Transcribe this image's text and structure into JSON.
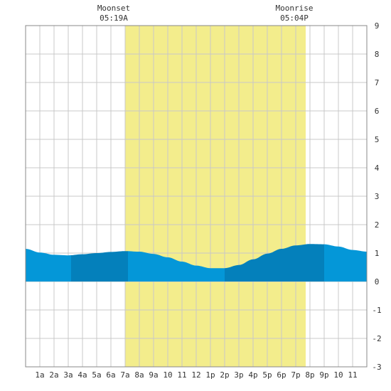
{
  "chart_data": {
    "type": "area",
    "title": "",
    "xlabel": "",
    "ylabel": "",
    "x_tick_labels": [
      "1a",
      "2a",
      "3a",
      "4a",
      "5a",
      "6a",
      "7a",
      "8a",
      "9a",
      "10",
      "11",
      "12",
      "1p",
      "2p",
      "3p",
      "4p",
      "5p",
      "6p",
      "7p",
      "8p",
      "9p",
      "10",
      "11"
    ],
    "xlim": [
      0,
      24
    ],
    "ylim": [
      -3,
      9
    ],
    "y_ticks": [
      -3,
      -2,
      -1,
      0,
      1,
      2,
      3,
      4,
      5,
      6,
      7,
      8,
      9
    ],
    "grid": true,
    "annotations": [
      {
        "label": "Moonset",
        "time": "05:19A",
        "hour": 7.0
      },
      {
        "label": "Moonrise",
        "time": "05:04P",
        "hour": 19.7
      }
    ],
    "daylight_hours": [
      7.0,
      19.7
    ],
    "series": [
      {
        "values": [
          [
            0.0,
            1.15
          ],
          [
            1.0,
            1.02
          ],
          [
            2.0,
            0.94
          ],
          [
            3.0,
            0.92
          ],
          [
            4.0,
            0.96
          ],
          [
            5.0,
            1.0
          ],
          [
            6.0,
            1.04
          ],
          [
            7.0,
            1.07
          ],
          [
            8.0,
            1.05
          ],
          [
            9.0,
            0.97
          ],
          [
            10.0,
            0.85
          ],
          [
            11.0,
            0.7
          ],
          [
            12.0,
            0.56
          ],
          [
            13.0,
            0.47
          ],
          [
            14.0,
            0.47
          ],
          [
            15.0,
            0.58
          ],
          [
            16.0,
            0.78
          ],
          [
            17.0,
            0.98
          ],
          [
            18.0,
            1.15
          ],
          [
            19.0,
            1.27
          ],
          [
            20.0,
            1.32
          ],
          [
            21.0,
            1.31
          ],
          [
            22.0,
            1.23
          ],
          [
            23.0,
            1.11
          ],
          [
            24.0,
            1.05
          ]
        ]
      }
    ],
    "band_boundaries": [
      3.2,
      7.2,
      14.0,
      21.0
    ],
    "colors": {
      "daylight": "#f3ed8c",
      "water_light": "#0497d8",
      "water_dark": "#0480bb",
      "grid": "#c8c8c8",
      "frame": "#888888"
    }
  }
}
